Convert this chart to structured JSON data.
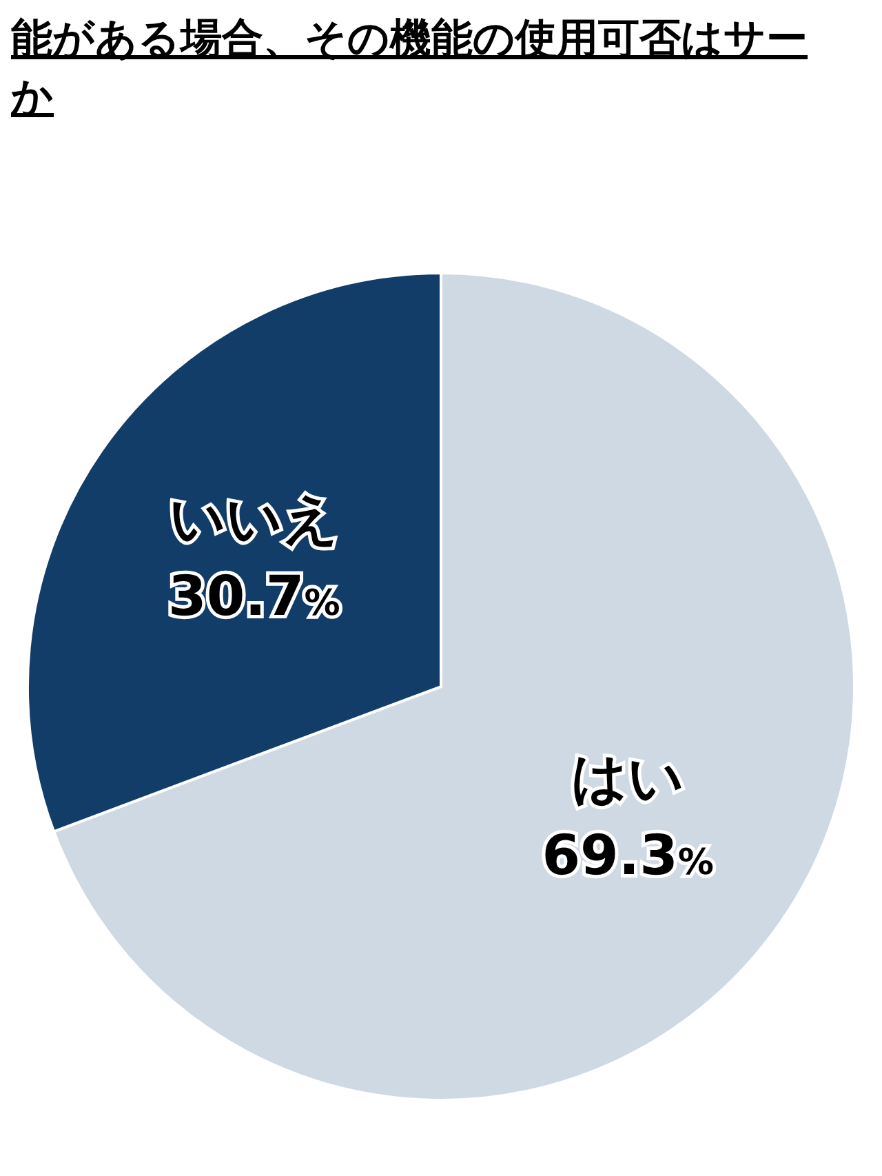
{
  "chart_data": {
    "type": "pie",
    "title": "能がある場合、その機能の使用可否はサーか",
    "categories": [
      "はい",
      "いいえ"
    ],
    "values": [
      69.3,
      30.7
    ],
    "colors": [
      "#cfd9e3",
      "#123d68"
    ],
    "value_labels": [
      "69.3%",
      "30.7%"
    ]
  }
}
